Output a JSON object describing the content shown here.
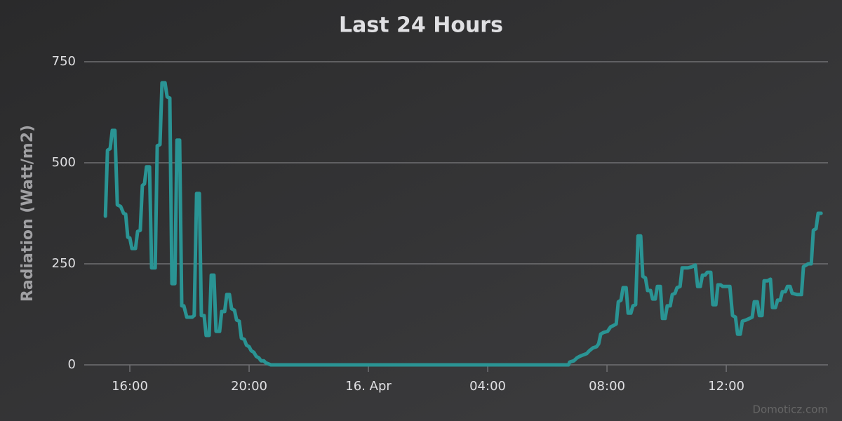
{
  "chart_data": {
    "type": "line",
    "title": "Last 24 Hours",
    "y_label": "Radiation (Watt/m2)",
    "credits": "Domoticz.com",
    "color": "#2a9494",
    "grid": true,
    "xlim": [
      14.47,
      39.41
    ],
    "ylim": [
      0,
      750
    ],
    "yticks": [
      0,
      250,
      500,
      750
    ],
    "xticks": [
      {
        "value": 16,
        "label": "16:00"
      },
      {
        "value": 20,
        "label": "20:00"
      },
      {
        "value": 24,
        "label": "16. Apr"
      },
      {
        "value": 28,
        "label": "04:00"
      },
      {
        "value": 32,
        "label": "08:00"
      },
      {
        "value": 36,
        "label": "12:00"
      }
    ],
    "x": [
      15.18,
      15.25,
      15.34,
      15.41,
      15.5,
      15.58,
      15.69,
      15.79,
      15.86,
      15.93,
      16.0,
      16.07,
      16.19,
      16.26,
      16.35,
      16.42,
      16.49,
      16.56,
      16.66,
      16.73,
      16.85,
      16.92,
      17.01,
      17.08,
      17.18,
      17.25,
      17.34,
      17.41,
      17.51,
      17.58,
      17.67,
      17.74,
      17.81,
      17.91,
      18.0,
      18.09,
      18.16,
      18.24,
      18.33,
      18.4,
      18.49,
      18.56,
      18.66,
      18.73,
      18.82,
      18.89,
      19.01,
      19.08,
      19.18,
      19.25,
      19.34,
      19.41,
      19.51,
      19.58,
      19.67,
      19.74,
      19.84,
      19.91,
      20.0,
      20.07,
      20.16,
      20.24,
      20.33,
      20.4,
      20.49,
      20.56,
      20.66,
      20.73,
      30.71,
      30.75,
      30.89,
      30.99,
      31.08,
      31.18,
      31.32,
      31.41,
      31.53,
      31.65,
      31.72,
      31.79,
      31.88,
      32.02,
      32.12,
      32.21,
      32.31,
      32.38,
      32.47,
      32.54,
      32.64,
      32.71,
      32.8,
      32.87,
      32.96,
      33.04,
      33.13,
      33.2,
      33.29,
      33.36,
      33.46,
      33.53,
      33.62,
      33.69,
      33.79,
      33.86,
      33.95,
      34.02,
      34.12,
      34.19,
      34.28,
      34.35,
      34.45,
      34.52,
      34.71,
      34.87,
      34.96,
      35.04,
      35.13,
      35.2,
      35.29,
      35.36,
      35.48,
      35.55,
      35.65,
      35.72,
      35.81,
      35.88,
      36.12,
      36.21,
      36.31,
      36.38,
      36.47,
      36.54,
      36.66,
      36.78,
      36.87,
      36.94,
      37.04,
      37.11,
      37.2,
      37.27,
      37.39,
      37.48,
      37.55,
      37.65,
      37.72,
      37.81,
      37.88,
      37.98,
      38.05,
      38.14,
      38.21,
      38.38,
      38.52,
      38.59,
      38.68,
      38.75,
      38.85,
      38.92,
      39.01,
      39.08,
      39.18
    ],
    "values": [
      368,
      531,
      535,
      580,
      580,
      396,
      392,
      375,
      373,
      316,
      314,
      288,
      288,
      330,
      333,
      444,
      448,
      490,
      490,
      240,
      240,
      542,
      545,
      698,
      698,
      663,
      660,
      201,
      201,
      556,
      556,
      146,
      146,
      118,
      118,
      118,
      122,
      424,
      424,
      122,
      122,
      73,
      73,
      222,
      222,
      83,
      83,
      132,
      132,
      174,
      174,
      139,
      135,
      111,
      108,
      66,
      63,
      49,
      45,
      35,
      31,
      21,
      17,
      10,
      10,
      5,
      2,
      0,
      0,
      7,
      10,
      17,
      21,
      24,
      28,
      35,
      42,
      45,
      52,
      76,
      80,
      83,
      94,
      97,
      101,
      156,
      160,
      191,
      191,
      128,
      128,
      146,
      149,
      319,
      319,
      219,
      215,
      184,
      184,
      163,
      163,
      194,
      194,
      115,
      115,
      146,
      146,
      174,
      177,
      191,
      194,
      240,
      240,
      243,
      247,
      194,
      194,
      222,
      222,
      229,
      229,
      149,
      149,
      198,
      198,
      194,
      194,
      122,
      118,
      76,
      76,
      108,
      111,
      115,
      118,
      156,
      156,
      122,
      122,
      208,
      208,
      212,
      142,
      142,
      160,
      160,
      181,
      181,
      194,
      194,
      177,
      174,
      174,
      243,
      247,
      250,
      250,
      333,
      337,
      375,
      375
    ]
  }
}
